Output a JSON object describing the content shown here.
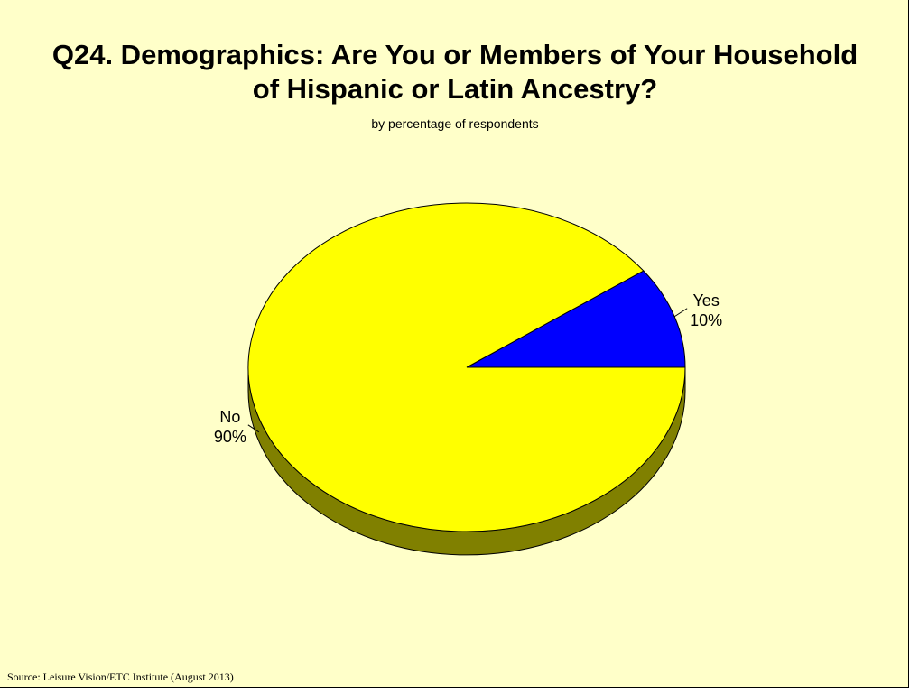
{
  "slide": {
    "title_line1": "Q24. Demographics:  Are You or Members of Your Household",
    "title_line2": "of Hispanic or Latin Ancestry?",
    "subtitle": "by percentage of respondents",
    "source": "Source:  Leisure Vision/ETC Institute (August 2013)"
  },
  "chart_data": {
    "type": "pie",
    "title": "Q24. Demographics:  Are You or Members of Your Household of Hispanic or Latin Ancestry?",
    "subtitle": "by percentage of respondents",
    "style": "3d",
    "slices": [
      {
        "label": "Yes",
        "value": 10,
        "display": "10%",
        "color": "#0000ff",
        "side_color": "#000080"
      },
      {
        "label": "No",
        "value": 90,
        "display": "90%",
        "color": "#ffff00",
        "side_color": "#808000"
      }
    ]
  }
}
